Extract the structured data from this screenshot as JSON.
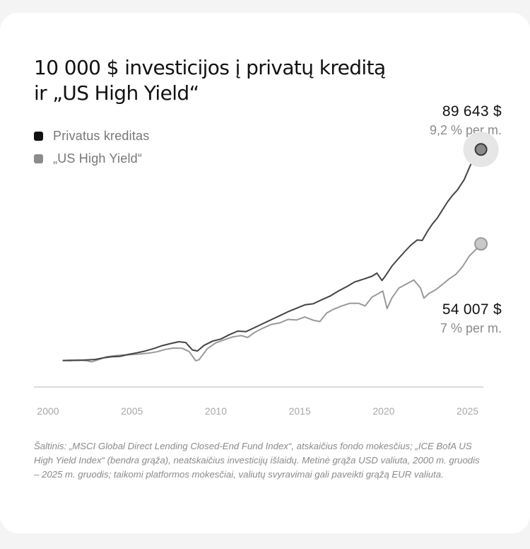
{
  "title_lines": [
    "10 000 $ investicijos į privatų kreditą",
    "ir „US High Yield“"
  ],
  "source_note": "Šaltinis: „MSCI Global Direct Lending Closed-End Fund Index“, atskaičius fondo mokesčius; „ICE BofA US High Yield Index“ (bendra grąža), neatskaičius investicijų išlaidų. Metinė grąža USD valiuta, 2000 m. gruodis – 2025 m. gruodis; taikomi platformos mokesčiai, valiutų svyravimai gali paveikti grąžą EUR valiuta.",
  "colors": {
    "private_credit": "#444444",
    "high_yield": "#9a9a9a",
    "legend_private": "#111111",
    "legend_hy": "#8c8c8c"
  },
  "chart_data": {
    "type": "line",
    "title": "10 000 $ investicijos į privatų kreditą ir „US High Yield“",
    "xlabel": "",
    "ylabel": "",
    "xlim": [
      2000,
      2025.9
    ],
    "ylim": [
      0,
      98000
    ],
    "x_ticks": [
      2000,
      2005,
      2010,
      2015,
      2020,
      2025
    ],
    "grid": false,
    "legend_position": "top-left",
    "series": [
      {
        "name": "Privatus kreditas",
        "end_label": "89 643 $",
        "rate_label": "9,2 % per m.",
        "points": [
          [
            2000.9,
            10000
          ],
          [
            2001.3,
            10100
          ],
          [
            2001.8,
            10050
          ],
          [
            2002.3,
            10200
          ],
          [
            2002.8,
            10400
          ],
          [
            2003.3,
            11000
          ],
          [
            2003.8,
            11400
          ],
          [
            2004.3,
            11600
          ],
          [
            2004.8,
            12300
          ],
          [
            2005.3,
            12900
          ],
          [
            2005.8,
            13600
          ],
          [
            2006.3,
            14500
          ],
          [
            2006.8,
            15600
          ],
          [
            2007.3,
            16400
          ],
          [
            2007.8,
            17100
          ],
          [
            2008.2,
            16800
          ],
          [
            2008.6,
            14000
          ],
          [
            2008.9,
            13600
          ],
          [
            2009.3,
            15700
          ],
          [
            2009.8,
            17300
          ],
          [
            2010.3,
            18100
          ],
          [
            2010.8,
            19700
          ],
          [
            2011.3,
            21100
          ],
          [
            2011.8,
            20900
          ],
          [
            2012.3,
            22400
          ],
          [
            2012.8,
            23900
          ],
          [
            2013.3,
            25400
          ],
          [
            2013.8,
            26900
          ],
          [
            2014.3,
            28400
          ],
          [
            2014.8,
            29700
          ],
          [
            2015.3,
            31000
          ],
          [
            2015.8,
            31400
          ],
          [
            2016.3,
            32900
          ],
          [
            2016.8,
            34300
          ],
          [
            2017.3,
            36200
          ],
          [
            2017.8,
            37900
          ],
          [
            2018.3,
            39700
          ],
          [
            2018.8,
            40700
          ],
          [
            2019.3,
            41800
          ],
          [
            2019.6,
            43000
          ],
          [
            2019.9,
            40200
          ],
          [
            2020.1,
            41900
          ],
          [
            2020.5,
            45700
          ],
          [
            2020.9,
            48600
          ],
          [
            2021.3,
            51400
          ],
          [
            2021.6,
            53400
          ],
          [
            2022.0,
            55500
          ],
          [
            2022.3,
            55300
          ],
          [
            2022.6,
            58600
          ],
          [
            2022.9,
            61500
          ],
          [
            2023.2,
            63800
          ],
          [
            2023.5,
            66800
          ],
          [
            2023.8,
            69800
          ],
          [
            2024.1,
            72300
          ],
          [
            2024.4,
            74400
          ],
          [
            2024.8,
            78300
          ],
          [
            2025.1,
            82700
          ],
          [
            2025.4,
            86800
          ],
          [
            2025.6,
            88300
          ],
          [
            2025.8,
            89643
          ]
        ]
      },
      {
        "name": "„US High Yield“",
        "end_label": "54 007 $",
        "rate_label": "7 % per m.",
        "points": [
          [
            2000.9,
            10000
          ],
          [
            2001.3,
            9900
          ],
          [
            2001.8,
            10200
          ],
          [
            2002.3,
            9900
          ],
          [
            2002.6,
            9500
          ],
          [
            2003.0,
            10300
          ],
          [
            2003.5,
            11400
          ],
          [
            2004.0,
            11800
          ],
          [
            2004.5,
            12100
          ],
          [
            2005.0,
            12200
          ],
          [
            2005.5,
            12500
          ],
          [
            2006.0,
            12800
          ],
          [
            2006.5,
            13300
          ],
          [
            2007.0,
            14200
          ],
          [
            2007.5,
            14700
          ],
          [
            2008.0,
            14600
          ],
          [
            2008.4,
            13400
          ],
          [
            2008.8,
            9900
          ],
          [
            2009.0,
            10300
          ],
          [
            2009.5,
            14500
          ],
          [
            2010.0,
            16700
          ],
          [
            2010.5,
            17800
          ],
          [
            2011.0,
            18900
          ],
          [
            2011.5,
            19400
          ],
          [
            2011.9,
            18700
          ],
          [
            2012.3,
            20600
          ],
          [
            2012.8,
            22200
          ],
          [
            2013.3,
            23600
          ],
          [
            2013.8,
            24200
          ],
          [
            2014.3,
            25500
          ],
          [
            2014.8,
            25300
          ],
          [
            2015.3,
            26400
          ],
          [
            2015.8,
            25200
          ],
          [
            2016.2,
            24700
          ],
          [
            2016.6,
            27900
          ],
          [
            2017.0,
            29300
          ],
          [
            2017.5,
            30600
          ],
          [
            2018.0,
            31600
          ],
          [
            2018.5,
            31600
          ],
          [
            2018.9,
            30600
          ],
          [
            2019.3,
            33900
          ],
          [
            2019.7,
            35300
          ],
          [
            2019.95,
            36200
          ],
          [
            2020.2,
            29600
          ],
          [
            2020.5,
            33700
          ],
          [
            2020.9,
            37300
          ],
          [
            2021.3,
            38700
          ],
          [
            2021.8,
            40400
          ],
          [
            2022.2,
            37300
          ],
          [
            2022.4,
            33500
          ],
          [
            2022.7,
            35300
          ],
          [
            2023.1,
            36700
          ],
          [
            2023.5,
            38700
          ],
          [
            2023.9,
            40800
          ],
          [
            2024.3,
            42500
          ],
          [
            2024.7,
            45400
          ],
          [
            2025.1,
            49400
          ],
          [
            2025.5,
            51900
          ],
          [
            2025.8,
            54007
          ]
        ]
      }
    ]
  }
}
